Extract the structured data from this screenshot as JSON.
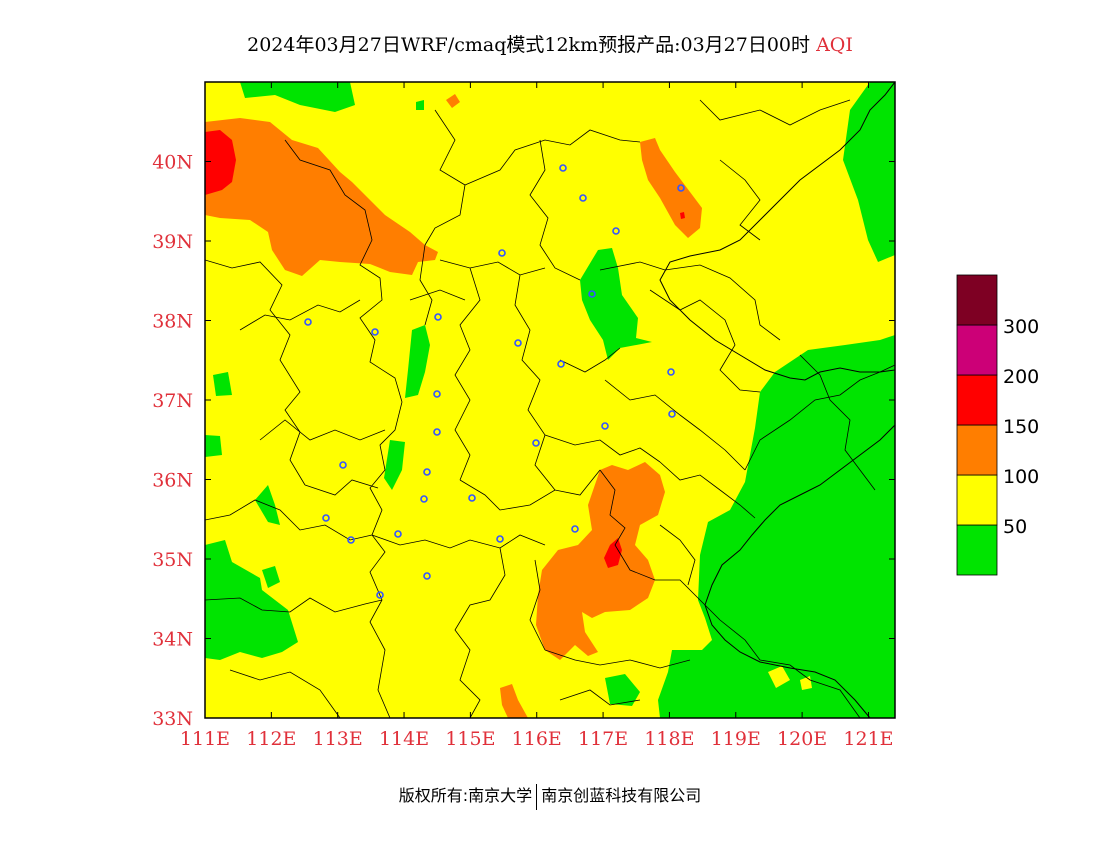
{
  "title": {
    "main": "2024年03月27日WRF/cmaq模式12km预报产品:03月27日00时",
    "product": "AQI"
  },
  "map": {
    "lon_range": [
      111,
      121.4
    ],
    "lat_range": [
      33,
      41
    ],
    "x_ticks": [
      "111E",
      "112E",
      "113E",
      "114E",
      "115E",
      "116E",
      "117E",
      "118E",
      "119E",
      "120E",
      "121E"
    ],
    "y_ticks": [
      "33N",
      "34N",
      "35N",
      "36N",
      "37N",
      "38N",
      "39N",
      "40N"
    ],
    "background_category": "50-100",
    "colors": {
      "0-50": "#00e400",
      "50-100": "#ffff00",
      "100-150": "#ff7e00",
      "150-200": "#ff0000",
      "200-300": "#cc0077",
      "300+": "#7e0023",
      "axis_label": "#e0303a",
      "city_marker": "#3355ff"
    }
  },
  "legend": {
    "labels": [
      "50",
      "100",
      "150",
      "200",
      "300"
    ],
    "bins": [
      {
        "range": "0-50",
        "color": "#00e400"
      },
      {
        "range": "50-100",
        "color": "#ffff00"
      },
      {
        "range": "100-150",
        "color": "#ff7e00"
      },
      {
        "range": "150-200",
        "color": "#ff0000"
      },
      {
        "range": "200-300",
        "color": "#cc0077"
      },
      {
        "range": "300+",
        "color": "#7e0023"
      }
    ]
  },
  "footer": {
    "left": "版权所有:南京大学",
    "right": "南京创蓝科技有限公司"
  }
}
